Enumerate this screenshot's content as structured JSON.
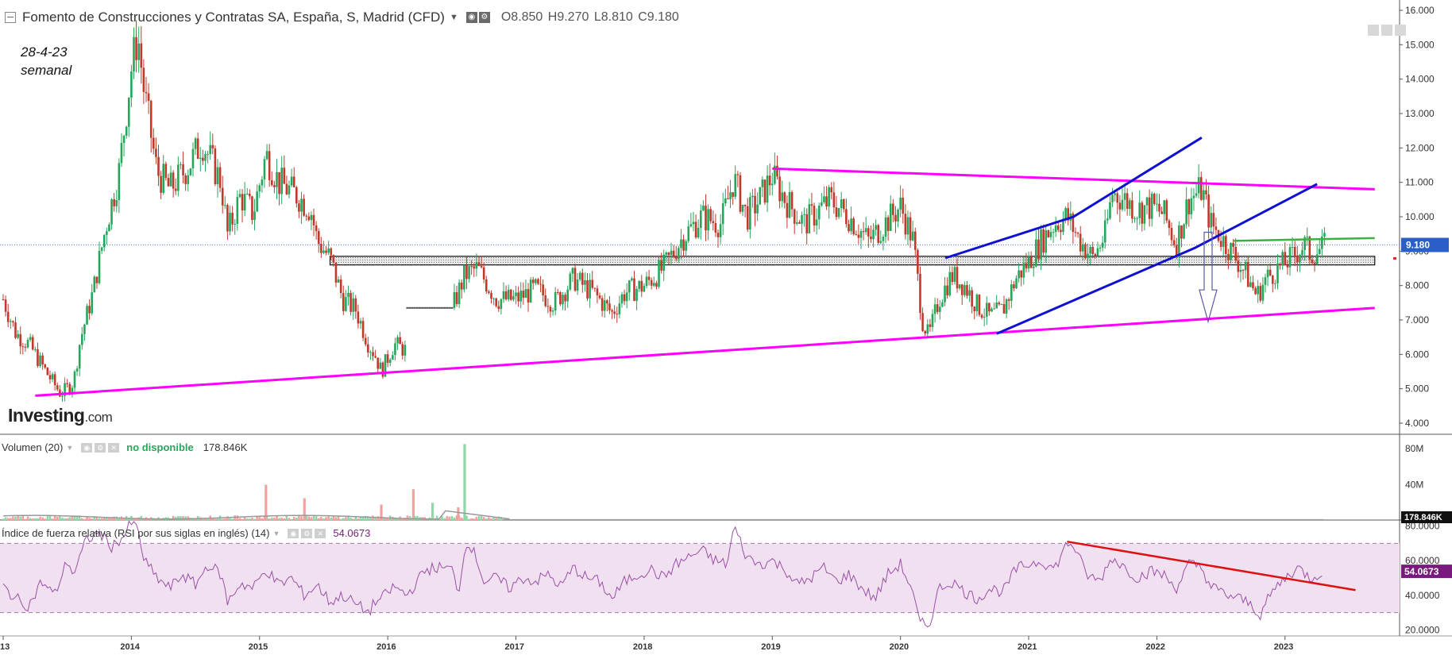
{
  "header": {
    "instrument": "Fomento de Construcciones y Contratas SA, España, S, Madrid (CFD)",
    "open": "O8.850",
    "high": "H9.270",
    "low": "L8.810",
    "close": "C9.180"
  },
  "annotation": {
    "date": "28-4-23",
    "period": "semanal"
  },
  "brand": {
    "name": "Investing",
    "suffix": ".com"
  },
  "volume_pane": {
    "label": "Volumen (20)",
    "status": "no disponible",
    "value": "178.846K"
  },
  "rsi_pane": {
    "label": "Índice de fuerza relativa (RSI por sus siglas en inglés) (14)",
    "value": "54.0673"
  },
  "price_badge": "9.180",
  "volume_badge": "178.846K",
  "rsi_badge": "54.0673",
  "colors": {
    "up": "#26a65b",
    "down": "#c0392b",
    "magenta": "#ff00ff",
    "blue": "#1010d0",
    "green_line": "#3cb043",
    "red_trend": "#dd1111",
    "rsi_line": "#9b4fa8",
    "rsi_band": "#f0e0f0",
    "price_badge_bg": "#2a5fc8",
    "rsi_badge_bg": "#7a1a7e"
  },
  "chart_data": [
    {
      "type": "candlestick",
      "title": "Fomento de Construcciones y Contratas SA, España, S, Madrid (CFD)",
      "timeframe": "semanal",
      "x_range": [
        "2013-01",
        "2023-04"
      ],
      "x_ticks": [
        "13",
        "2014",
        "2015",
        "2016",
        "2017",
        "2018",
        "2019",
        "2020",
        "2021",
        "2022",
        "2023"
      ],
      "y_ticks": [
        "16.000",
        "15.000",
        "14.000",
        "13.000",
        "12.000",
        "11.000",
        "10.000",
        "9.000",
        "8.000",
        "7.000",
        "6.000",
        "5.000",
        "4.000"
      ],
      "ylim": [
        3.7,
        16.3
      ],
      "last_close": 9.18,
      "price_path": [
        [
          2013.0,
          7.6
        ],
        [
          2013.1,
          6.6
        ],
        [
          2013.2,
          6.3
        ],
        [
          2013.35,
          5.4
        ],
        [
          2013.45,
          4.85
        ],
        [
          2013.55,
          5.2
        ],
        [
          2013.6,
          6.4
        ],
        [
          2013.7,
          7.8
        ],
        [
          2013.8,
          9.7
        ],
        [
          2013.9,
          11.2
        ],
        [
          2014.0,
          14.3
        ],
        [
          2014.05,
          15.3
        ],
        [
          2014.1,
          13.6
        ],
        [
          2014.2,
          11.3
        ],
        [
          2014.3,
          10.8
        ],
        [
          2014.45,
          11.5
        ],
        [
          2014.55,
          12.2
        ],
        [
          2014.7,
          11.0
        ],
        [
          2014.75,
          9.5
        ],
        [
          2014.85,
          10.6
        ],
        [
          2014.95,
          10.1
        ],
        [
          2015.05,
          11.8
        ],
        [
          2015.15,
          11.0
        ],
        [
          2015.3,
          10.6
        ],
        [
          2015.4,
          10.2
        ],
        [
          2015.45,
          9.3
        ],
        [
          2015.55,
          8.8
        ],
        [
          2015.65,
          7.6
        ],
        [
          2015.75,
          7.3
        ],
        [
          2015.85,
          6.3
        ],
        [
          2015.9,
          6.0
        ],
        [
          2015.95,
          5.5
        ],
        [
          2016.05,
          6.3
        ],
        [
          2016.15,
          6.1
        ],
        [
          2016.5,
          7.3
        ],
        [
          2016.6,
          8.3
        ],
        [
          2016.7,
          8.5
        ],
        [
          2016.85,
          7.6
        ],
        [
          2017.0,
          7.6
        ],
        [
          2017.15,
          7.9
        ],
        [
          2017.3,
          7.5
        ],
        [
          2017.45,
          8.2
        ],
        [
          2017.6,
          7.8
        ],
        [
          2017.75,
          7.2
        ],
        [
          2017.85,
          7.8
        ],
        [
          2018.0,
          8.0
        ],
        [
          2018.15,
          8.5
        ],
        [
          2018.3,
          9.4
        ],
        [
          2018.45,
          10.0
        ],
        [
          2018.6,
          9.8
        ],
        [
          2018.7,
          11.1
        ],
        [
          2018.8,
          10.0
        ],
        [
          2018.9,
          10.5
        ],
        [
          2019.0,
          11.2
        ],
        [
          2019.1,
          10.5
        ],
        [
          2019.25,
          9.8
        ],
        [
          2019.45,
          10.5
        ],
        [
          2019.6,
          10.0
        ],
        [
          2019.75,
          9.3
        ],
        [
          2019.9,
          9.9
        ],
        [
          2020.0,
          10.3
        ],
        [
          2020.1,
          9.3
        ],
        [
          2020.17,
          7.0
        ],
        [
          2020.22,
          6.5
        ],
        [
          2020.3,
          7.6
        ],
        [
          2020.4,
          8.3
        ],
        [
          2020.5,
          8.0
        ],
        [
          2020.6,
          7.4
        ],
        [
          2020.7,
          7.1
        ],
        [
          2020.8,
          7.3
        ],
        [
          2020.9,
          8.2
        ],
        [
          2021.0,
          8.7
        ],
        [
          2021.1,
          9.3
        ],
        [
          2021.2,
          9.8
        ],
        [
          2021.3,
          10.0
        ],
        [
          2021.4,
          9.3
        ],
        [
          2021.5,
          8.8
        ],
        [
          2021.6,
          9.5
        ],
        [
          2021.65,
          10.7
        ],
        [
          2021.75,
          10.5
        ],
        [
          2021.85,
          10.2
        ],
        [
          2021.95,
          10.3
        ],
        [
          2022.05,
          10.1
        ],
        [
          2022.15,
          9.2
        ],
        [
          2022.25,
          10.5
        ],
        [
          2022.35,
          10.8
        ],
        [
          2022.42,
          9.8
        ],
        [
          2022.5,
          9.4
        ],
        [
          2022.6,
          8.9
        ],
        [
          2022.7,
          8.3
        ],
        [
          2022.78,
          7.7
        ],
        [
          2022.85,
          8.2
        ],
        [
          2022.95,
          8.5
        ],
        [
          2023.05,
          8.8
        ],
        [
          2023.15,
          9.2
        ],
        [
          2023.2,
          8.9
        ],
        [
          2023.3,
          9.1
        ],
        [
          2023.32,
          9.18
        ]
      ],
      "gap": [
        2016.15,
        2016.5
      ],
      "overlays": {
        "support_band": {
          "x": [
            2015.55,
            2023.7
          ],
          "y": [
            8.6,
            8.85
          ]
        },
        "triangle_upper": [
          [
            2019.0,
            11.4
          ],
          [
            2023.7,
            10.8
          ]
        ],
        "triangle_lower": [
          [
            2013.25,
            4.8
          ],
          [
            2023.7,
            7.35
          ]
        ],
        "channel_upper": [
          [
            2020.35,
            8.8
          ],
          [
            2021.35,
            10.0
          ],
          [
            2022.35,
            12.3
          ]
        ],
        "channel_lower": [
          [
            2020.75,
            6.6
          ],
          [
            2022.3,
            9.1
          ],
          [
            2023.25,
            10.95
          ]
        ],
        "green_resistance": [
          [
            2022.6,
            9.3
          ],
          [
            2023.7,
            9.38
          ]
        ],
        "projection_arrow": {
          "x": 2022.4,
          "from": 9.55,
          "to": 6.95
        }
      }
    },
    {
      "type": "bar",
      "title": "Volumen (20)",
      "y_ticks": [
        "80M",
        "40M"
      ],
      "ylim": [
        0,
        95
      ],
      "last_value": "178.846K",
      "notable_bars": [
        {
          "x": 2015.05,
          "value": 40,
          "dir": "down"
        },
        {
          "x": 2015.35,
          "value": 25,
          "dir": "down"
        },
        {
          "x": 2015.95,
          "value": 18,
          "dir": "down"
        },
        {
          "x": 2016.2,
          "value": 35,
          "dir": "down"
        },
        {
          "x": 2016.35,
          "value": 20,
          "dir": "up"
        },
        {
          "x": 2016.55,
          "value": 15,
          "dir": "down"
        },
        {
          "x": 2016.6,
          "value": 85,
          "dir": "up"
        }
      ],
      "volume_end": 2016.9
    },
    {
      "type": "line",
      "title": "Índice de fuerza relativa (RSI por sus siglas en inglés) (14)",
      "y_ticks": [
        "80.0000",
        "60.0000",
        "40.0000",
        "20.0000"
      ],
      "ylim": [
        17,
        83
      ],
      "band": [
        30,
        70
      ],
      "last_value": 54.0673,
      "rsi_path": [
        [
          2013.0,
          45
        ],
        [
          2013.1,
          38
        ],
        [
          2013.2,
          34
        ],
        [
          2013.3,
          48
        ],
        [
          2013.4,
          40
        ],
        [
          2013.5,
          60
        ],
        [
          2013.55,
          52
        ],
        [
          2013.65,
          72
        ],
        [
          2013.75,
          76
        ],
        [
          2013.85,
          68
        ],
        [
          2013.95,
          75
        ],
        [
          2014.0,
          82
        ],
        [
          2014.05,
          78
        ],
        [
          2014.1,
          60
        ],
        [
          2014.2,
          50
        ],
        [
          2014.3,
          44
        ],
        [
          2014.4,
          52
        ],
        [
          2014.5,
          46
        ],
        [
          2014.6,
          58
        ],
        [
          2014.7,
          52
        ],
        [
          2014.75,
          36
        ],
        [
          2014.85,
          47
        ],
        [
          2014.95,
          44
        ],
        [
          2015.05,
          55
        ],
        [
          2015.15,
          46
        ],
        [
          2015.25,
          50
        ],
        [
          2015.35,
          40
        ],
        [
          2015.45,
          46
        ],
        [
          2015.55,
          36
        ],
        [
          2015.65,
          40
        ],
        [
          2015.75,
          35
        ],
        [
          2015.85,
          30
        ],
        [
          2015.9,
          36
        ],
        [
          2015.95,
          38
        ],
        [
          2016.05,
          45
        ],
        [
          2016.15,
          40
        ],
        [
          2016.3,
          55
        ],
        [
          2016.4,
          56
        ],
        [
          2016.5,
          55
        ],
        [
          2016.55,
          42
        ],
        [
          2016.62,
          73
        ],
        [
          2016.7,
          60
        ],
        [
          2016.75,
          48
        ],
        [
          2016.85,
          50
        ],
        [
          2016.95,
          44
        ],
        [
          2017.05,
          50
        ],
        [
          2017.15,
          48
        ],
        [
          2017.25,
          52
        ],
        [
          2017.35,
          45
        ],
        [
          2017.45,
          56
        ],
        [
          2017.55,
          50
        ],
        [
          2017.65,
          48
        ],
        [
          2017.75,
          38
        ],
        [
          2017.85,
          48
        ],
        [
          2017.95,
          52
        ],
        [
          2018.05,
          55
        ],
        [
          2018.15,
          50
        ],
        [
          2018.25,
          58
        ],
        [
          2018.35,
          62
        ],
        [
          2018.45,
          66
        ],
        [
          2018.55,
          60
        ],
        [
          2018.65,
          58
        ],
        [
          2018.7,
          80
        ],
        [
          2018.8,
          62
        ],
        [
          2018.9,
          58
        ],
        [
          2019.0,
          60
        ],
        [
          2019.1,
          55
        ],
        [
          2019.2,
          46
        ],
        [
          2019.3,
          50
        ],
        [
          2019.4,
          56
        ],
        [
          2019.5,
          48
        ],
        [
          2019.6,
          52
        ],
        [
          2019.7,
          44
        ],
        [
          2019.8,
          38
        ],
        [
          2019.9,
          52
        ],
        [
          2020.0,
          58
        ],
        [
          2020.08,
          45
        ],
        [
          2020.15,
          24
        ],
        [
          2020.22,
          22
        ],
        [
          2020.3,
          44
        ],
        [
          2020.4,
          48
        ],
        [
          2020.5,
          42
        ],
        [
          2020.6,
          38
        ],
        [
          2020.7,
          44
        ],
        [
          2020.8,
          42
        ],
        [
          2020.9,
          55
        ],
        [
          2021.0,
          58
        ],
        [
          2021.1,
          60
        ],
        [
          2021.2,
          55
        ],
        [
          2021.3,
          70
        ],
        [
          2021.35,
          69
        ],
        [
          2021.45,
          52
        ],
        [
          2021.55,
          48
        ],
        [
          2021.65,
          62
        ],
        [
          2021.75,
          56
        ],
        [
          2021.85,
          50
        ],
        [
          2021.95,
          54
        ],
        [
          2022.05,
          52
        ],
        [
          2022.15,
          44
        ],
        [
          2022.25,
          58
        ],
        [
          2022.35,
          56
        ],
        [
          2022.42,
          45
        ],
        [
          2022.55,
          40
        ],
        [
          2022.65,
          38
        ],
        [
          2022.75,
          34
        ],
        [
          2022.8,
          28
        ],
        [
          2022.9,
          42
        ],
        [
          2023.0,
          50
        ],
        [
          2023.1,
          56
        ],
        [
          2023.2,
          50
        ],
        [
          2023.3,
          54.07
        ]
      ],
      "trendline": [
        [
          2021.3,
          71
        ],
        [
          2023.55,
          43
        ]
      ]
    }
  ]
}
